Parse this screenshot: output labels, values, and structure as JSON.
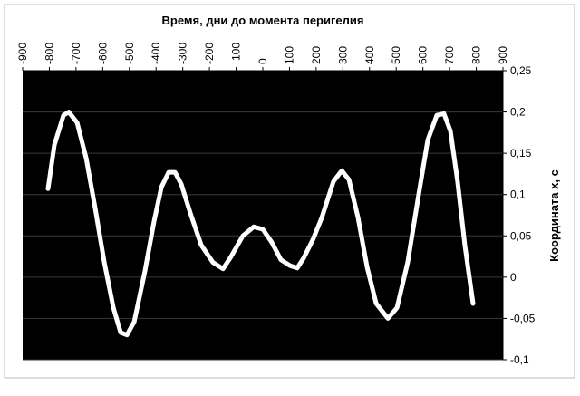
{
  "chart_data": {
    "type": "line",
    "title": "Время, дни до момента перигелия",
    "y_label": "Координата x, с",
    "x": [
      -805,
      -781,
      -747,
      -727,
      -696,
      -662,
      -628,
      -594,
      -560,
      -533,
      -509,
      -482,
      -442,
      -408,
      -380,
      -353,
      -329,
      -306,
      -272,
      -231,
      -187,
      -149,
      -119,
      -75,
      -34,
      0,
      34,
      68,
      102,
      129,
      153,
      187,
      221,
      265,
      296,
      323,
      357,
      391,
      425,
      469,
      503,
      543,
      584,
      618,
      652,
      679,
      703,
      730,
      757,
      788
    ],
    "series": [
      {
        "color": "#ffffff",
        "values": [
          0.107,
          0.16,
          0.196,
          0.2,
          0.187,
          0.144,
          0.083,
          0.018,
          -0.037,
          -0.067,
          -0.07,
          -0.054,
          0.007,
          0.067,
          0.109,
          0.127,
          0.127,
          0.113,
          0.078,
          0.039,
          0.018,
          0.01,
          0.025,
          0.05,
          0.061,
          0.058,
          0.042,
          0.021,
          0.014,
          0.011,
          0.023,
          0.045,
          0.072,
          0.116,
          0.129,
          0.118,
          0.072,
          0.012,
          -0.032,
          -0.05,
          -0.037,
          0.018,
          0.1,
          0.166,
          0.196,
          0.198,
          0.177,
          0.116,
          0.039,
          -0.032
        ]
      }
    ],
    "xlim": [
      -900,
      900
    ],
    "xticks": [
      -900,
      -800,
      -700,
      -600,
      -500,
      -400,
      -300,
      -200,
      -100,
      0,
      100,
      200,
      300,
      400,
      500,
      600,
      700,
      800,
      900
    ],
    "ylim": [
      -0.1,
      0.25
    ],
    "yticks": [
      {
        "value": -0.1,
        "label": "-0,1"
      },
      {
        "value": -0.05,
        "label": "-0,05"
      },
      0,
      {
        "value": 0.05,
        "label": "0,05"
      },
      {
        "value": 0.1,
        "label": "0,1"
      },
      {
        "value": 0.15,
        "label": "0,15"
      },
      {
        "value": 0.2,
        "label": "0,2"
      },
      {
        "value": 0.25,
        "label": "0,25"
      }
    ],
    "grid": true,
    "background": "#000000"
  }
}
